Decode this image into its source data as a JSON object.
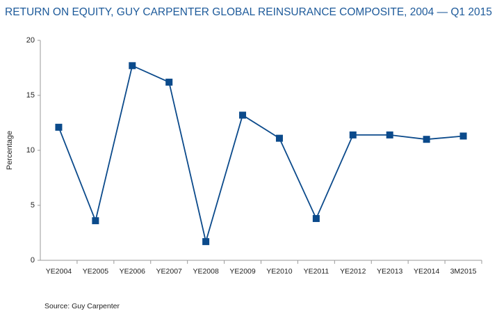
{
  "chart_data": {
    "type": "line",
    "title": "RETURN ON EQUITY, GUY CARPENTER GLOBAL REINSURANCE COMPOSITE, 2004 — Q1 2015",
    "y_label": "Percentage",
    "source": "Source: Guy Carpenter",
    "categories": [
      "YE2004",
      "YE2005",
      "YE2006",
      "YE2007",
      "YE2008",
      "YE2009",
      "YE2010",
      "YE2011",
      "YE2012",
      "YE2013",
      "YE2014",
      "3M2015"
    ],
    "series": [
      {
        "name": "Return on equity",
        "color": "#0b4a8b",
        "values": [
          12.1,
          3.6,
          17.7,
          16.2,
          1.7,
          13.2,
          11.1,
          3.8,
          11.4,
          11.4,
          11.0,
          11.3
        ]
      }
    ],
    "ylim": [
      0,
      20
    ],
    "yticks": [
      0,
      5,
      10,
      15,
      20
    ],
    "grid": false
  }
}
